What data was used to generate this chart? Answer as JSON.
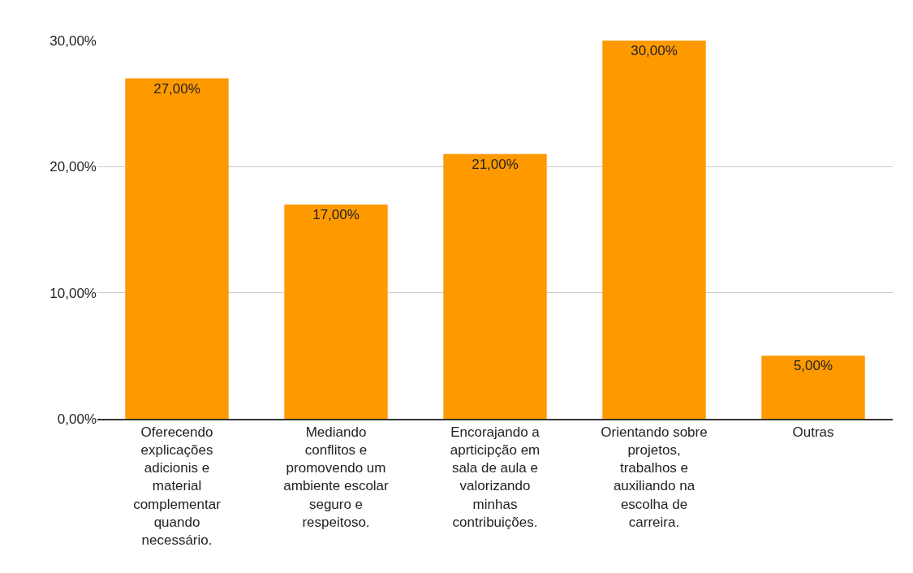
{
  "chart_data": {
    "type": "bar",
    "categories": [
      "Oferecendo explicações adicionis e material complementar quando necessário.",
      "Mediando conflitos e promovendo um ambiente escolar seguro e respeitoso.",
      "Encorajando a aprticipção em sala de aula e valorizando minhas contribuições.",
      "Orientando sobre projetos, trabalhos e auxiliando na escolha de carreira.",
      "Outras"
    ],
    "values": [
      27,
      17,
      21,
      30,
      5
    ],
    "value_labels": [
      "27,00%",
      "17,00%",
      "21,00%",
      "30,00%",
      "5,00%"
    ],
    "color": "#ff9900",
    "ylim": [
      0,
      30
    ],
    "yticks": [
      {
        "value": 0,
        "label": "0,00%"
      },
      {
        "value": 10,
        "label": "10,00%"
      },
      {
        "value": 20,
        "label": "20,00%"
      },
      {
        "value": 30,
        "label": "30,00%"
      }
    ],
    "grid": "y"
  }
}
